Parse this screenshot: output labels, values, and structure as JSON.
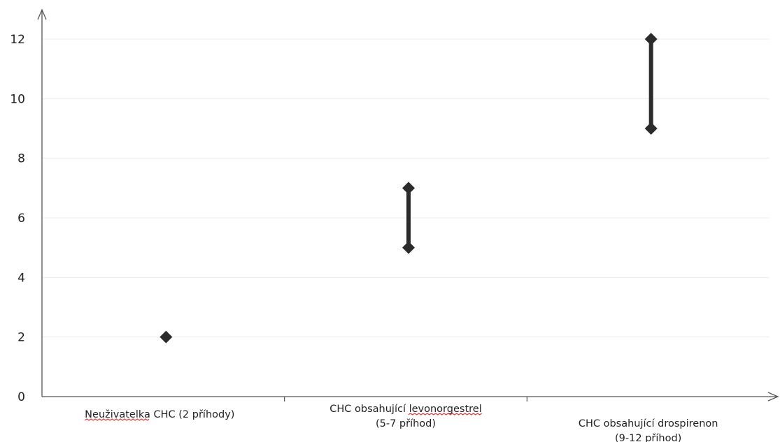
{
  "chart_data": {
    "type": "range",
    "title": "",
    "xlabel": "",
    "ylabel": "",
    "ylim": [
      0,
      12
    ],
    "yticks": [
      0,
      2,
      4,
      6,
      8,
      10,
      12
    ],
    "grid": true,
    "categories": [
      [
        "Neuživatelka CHC (2 příhody)"
      ],
      [
        "CHC obsahující levonorgestrel",
        "(5-7 příhod)"
      ],
      [
        "CHC obsahující drospirenon",
        "(9-12 příhod)"
      ]
    ],
    "series": [
      {
        "low": 2,
        "high": 2
      },
      {
        "low": 5,
        "high": 7
      },
      {
        "low": 9,
        "high": 12
      }
    ],
    "spellcheck_underlined_words": [
      "Neuživatelka",
      "levonorgestrel"
    ],
    "colors": {
      "marker": "#2b2b2b",
      "axis": "#555555",
      "grid": "#ececec",
      "spellcheck": "#e23b3b"
    }
  }
}
